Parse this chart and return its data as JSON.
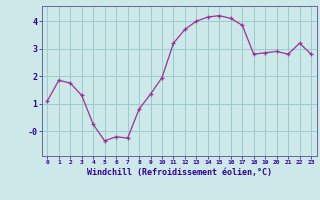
{
  "x": [
    0,
    1,
    2,
    3,
    4,
    5,
    6,
    7,
    8,
    9,
    10,
    11,
    12,
    13,
    14,
    15,
    16,
    17,
    18,
    19,
    20,
    21,
    22,
    23
  ],
  "y": [
    1.1,
    1.85,
    1.75,
    1.3,
    0.25,
    -0.35,
    -0.2,
    -0.25,
    0.8,
    1.35,
    1.95,
    3.2,
    3.7,
    4.0,
    4.15,
    4.2,
    4.1,
    3.85,
    2.8,
    2.85,
    2.9,
    2.8,
    3.2,
    2.8
  ],
  "line_color": "#993399",
  "marker": "+",
  "marker_color": "#993399",
  "bg_color": "#cce8e8",
  "grid_color": "#99cccc",
  "xlabel": "Windchill (Refroidissement éolien,°C)",
  "xlabel_color": "#330099",
  "tick_label_color": "#330099",
  "spine_color": "#666699",
  "ylim": [
    -0.9,
    4.55
  ],
  "xlim": [
    -0.5,
    23.5
  ],
  "figsize": [
    3.2,
    2.0
  ],
  "dpi": 100
}
